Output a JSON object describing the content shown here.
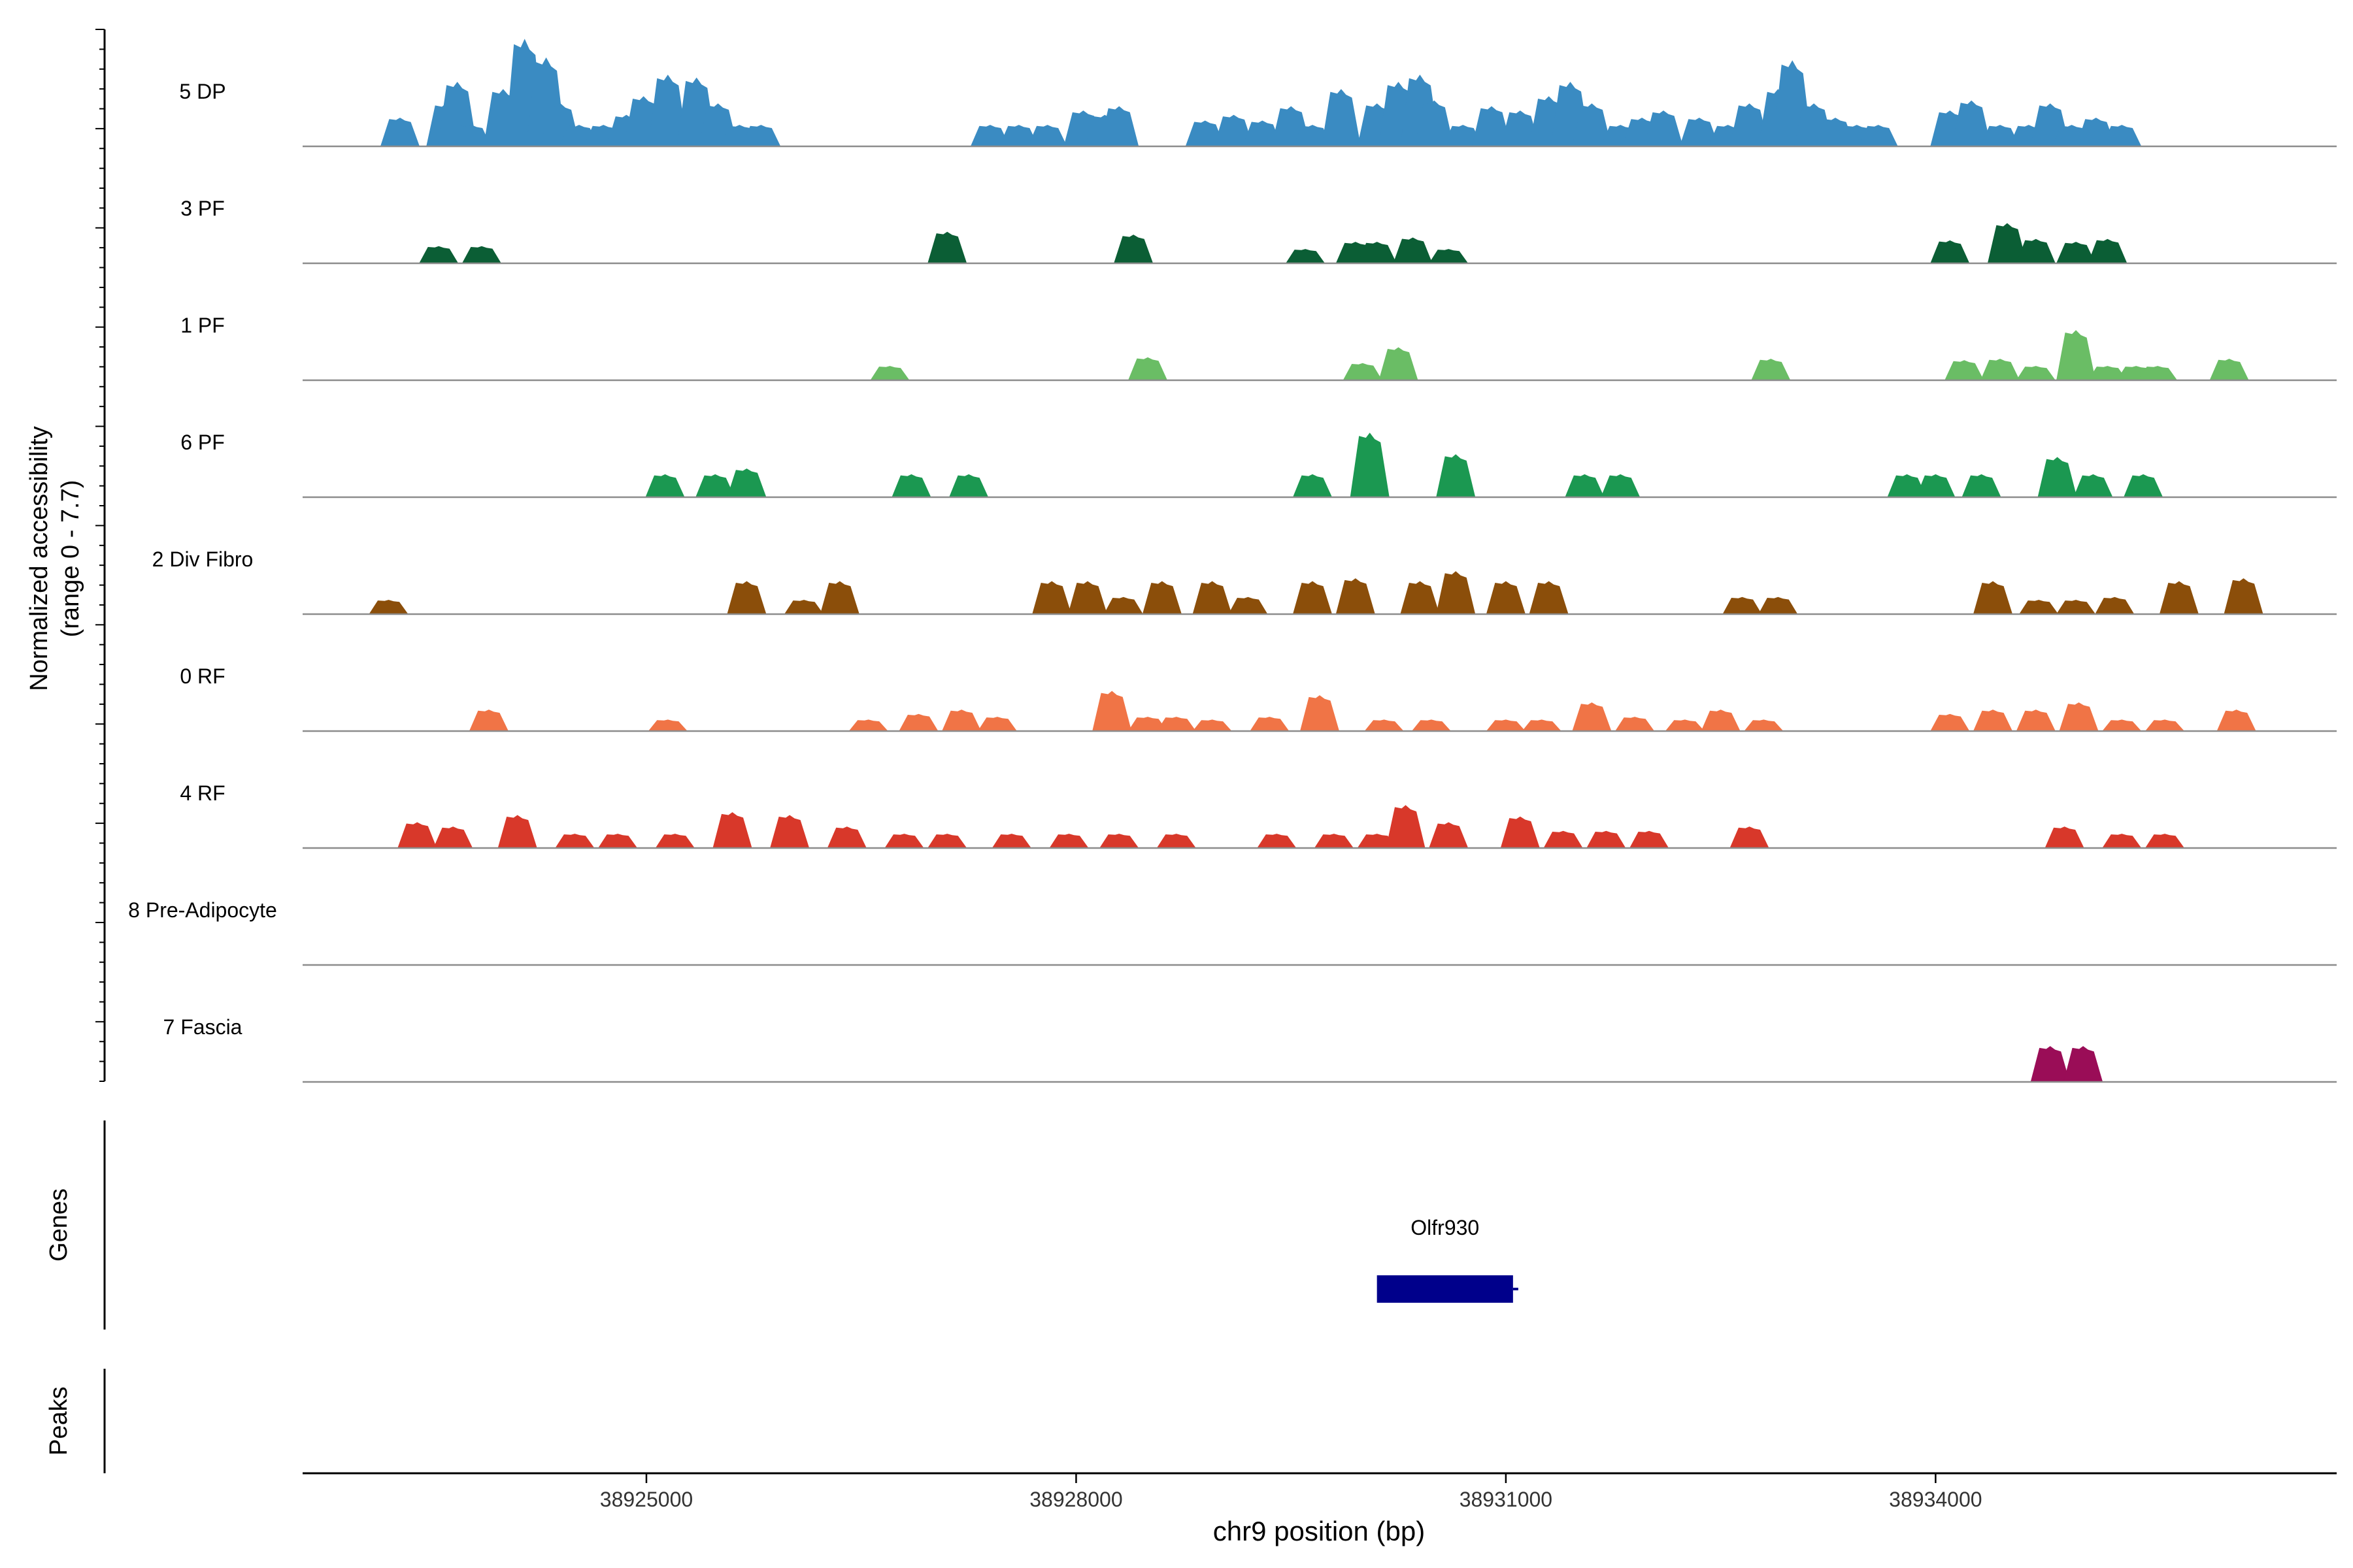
{
  "chart_data": {
    "type": "area",
    "title": "",
    "xlabel": "chr9 position (bp)",
    "ylabel": "Normalized accessibility",
    "ylabel_sub": "(range 0 - 7.7)",
    "ylim": [
      0,
      7.7
    ],
    "xlim": [
      38922600,
      38936800
    ],
    "x_ticks": [
      38925000,
      38928000,
      38931000,
      38934000
    ],
    "x_tick_labels": [
      "38925000",
      "38928000",
      "38931000",
      "38934000"
    ],
    "tracks": [
      {
        "name": "5 DP",
        "color": "#3a8bc2",
        "peaks": [
          [
            38923280,
            2.0
          ],
          [
            38923600,
            3.0
          ],
          [
            38923680,
            4.5
          ],
          [
            38923780,
            1.5
          ],
          [
            38924000,
            4.0
          ],
          [
            38924150,
            7.5
          ],
          [
            38924300,
            6.2
          ],
          [
            38924400,
            3.0
          ],
          [
            38924530,
            1.5
          ],
          [
            38924700,
            1.5
          ],
          [
            38924860,
            2.2
          ],
          [
            38924980,
            3.5
          ],
          [
            38925150,
            5.0
          ],
          [
            38925350,
            4.8
          ],
          [
            38925500,
            3.0
          ],
          [
            38925650,
            1.5
          ],
          [
            38925800,
            1.5
          ],
          [
            38927400,
            1.5
          ],
          [
            38927600,
            1.5
          ],
          [
            38927800,
            1.5
          ],
          [
            38928050,
            2.5
          ],
          [
            38928200,
            2.2
          ],
          [
            38928300,
            2.8
          ],
          [
            38928900,
            1.8
          ],
          [
            38929100,
            2.2
          ],
          [
            38929300,
            1.8
          ],
          [
            38929500,
            2.8
          ],
          [
            38929650,
            1.5
          ],
          [
            38929850,
            4.0
          ],
          [
            38930100,
            3.0
          ],
          [
            38930250,
            4.5
          ],
          [
            38930400,
            5.0
          ],
          [
            38930500,
            3.2
          ],
          [
            38930700,
            1.5
          ],
          [
            38930900,
            2.8
          ],
          [
            38931100,
            2.5
          ],
          [
            38931300,
            3.5
          ],
          [
            38931450,
            4.5
          ],
          [
            38931600,
            3.0
          ],
          [
            38931800,
            1.5
          ],
          [
            38931950,
            2.0
          ],
          [
            38932100,
            2.5
          ],
          [
            38932350,
            2.0
          ],
          [
            38932550,
            1.5
          ],
          [
            38932700,
            3.0
          ],
          [
            38932900,
            4.0
          ],
          [
            38933000,
            6.0
          ],
          [
            38933150,
            3.0
          ],
          [
            38933300,
            2.0
          ],
          [
            38933450,
            1.5
          ],
          [
            38933600,
            1.5
          ],
          [
            38934100,
            2.5
          ],
          [
            38934250,
            3.2
          ],
          [
            38934450,
            1.5
          ],
          [
            38934650,
            1.5
          ],
          [
            38934800,
            3.0
          ],
          [
            38934950,
            1.5
          ],
          [
            38935120,
            2.0
          ],
          [
            38935300,
            1.5
          ]
        ]
      },
      {
        "name": "3 PF",
        "color": "#0b5e35",
        "peaks": [
          [
            38923550,
            1.2
          ],
          [
            38923850,
            1.2
          ],
          [
            38927100,
            2.2
          ],
          [
            38928400,
            2.0
          ],
          [
            38929600,
            1.0
          ],
          [
            38929950,
            1.5
          ],
          [
            38930100,
            1.5
          ],
          [
            38930350,
            1.8
          ],
          [
            38930600,
            1.0
          ],
          [
            38934100,
            1.6
          ],
          [
            38934500,
            2.8
          ],
          [
            38934700,
            1.7
          ],
          [
            38934980,
            1.5
          ],
          [
            38935200,
            1.7
          ]
        ]
      },
      {
        "name": "1 PF",
        "color": "#6abd65",
        "peaks": [
          [
            38926700,
            1.0
          ],
          [
            38928500,
            1.6
          ],
          [
            38930000,
            1.2
          ],
          [
            38930250,
            2.3
          ],
          [
            38932850,
            1.5
          ],
          [
            38934200,
            1.4
          ],
          [
            38934450,
            1.5
          ],
          [
            38934700,
            1.0
          ],
          [
            38934980,
            3.5
          ],
          [
            38935200,
            1.0
          ],
          [
            38935400,
            1.0
          ],
          [
            38935550,
            1.0
          ],
          [
            38936050,
            1.5
          ]
        ]
      },
      {
        "name": "6 PF",
        "color": "#1b9851",
        "peaks": [
          [
            38925130,
            1.6
          ],
          [
            38925480,
            1.6
          ],
          [
            38925700,
            2.0
          ],
          [
            38926850,
            1.6
          ],
          [
            38927250,
            1.6
          ],
          [
            38929650,
            1.6
          ],
          [
            38930050,
            4.5
          ],
          [
            38930650,
            3.0
          ],
          [
            38931550,
            1.6
          ],
          [
            38931800,
            1.6
          ],
          [
            38933800,
            1.6
          ],
          [
            38934000,
            1.6
          ],
          [
            38934320,
            1.6
          ],
          [
            38934850,
            2.8
          ],
          [
            38935100,
            1.6
          ],
          [
            38935450,
            1.6
          ]
        ]
      },
      {
        "name": "2 Div Fibro",
        "color": "#8b4e0a",
        "peaks": [
          [
            38923200,
            1.0
          ],
          [
            38925700,
            2.3
          ],
          [
            38926100,
            1.0
          ],
          [
            38926350,
            2.3
          ],
          [
            38927830,
            2.3
          ],
          [
            38928080,
            2.3
          ],
          [
            38928330,
            1.2
          ],
          [
            38928600,
            2.3
          ],
          [
            38928950,
            2.3
          ],
          [
            38929200,
            1.2
          ],
          [
            38929650,
            2.3
          ],
          [
            38929950,
            2.5
          ],
          [
            38930400,
            2.3
          ],
          [
            38930650,
            3.0
          ],
          [
            38931000,
            2.3
          ],
          [
            38931300,
            2.3
          ],
          [
            38932650,
            1.2
          ],
          [
            38932900,
            1.2
          ],
          [
            38934400,
            2.3
          ],
          [
            38934720,
            1.0
          ],
          [
            38934980,
            1.0
          ],
          [
            38935250,
            1.2
          ],
          [
            38935700,
            2.3
          ],
          [
            38936150,
            2.5
          ]
        ]
      },
      {
        "name": "0 RF",
        "color": "#f07446",
        "peaks": [
          [
            38923900,
            1.5
          ],
          [
            38925150,
            0.8
          ],
          [
            38926550,
            0.8
          ],
          [
            38926900,
            1.2
          ],
          [
            38927200,
            1.5
          ],
          [
            38927450,
            1.0
          ],
          [
            38928250,
            2.8
          ],
          [
            38928500,
            1.0
          ],
          [
            38928700,
            1.0
          ],
          [
            38928950,
            0.8
          ],
          [
            38929350,
            1.0
          ],
          [
            38929700,
            2.5
          ],
          [
            38930150,
            0.8
          ],
          [
            38930480,
            0.8
          ],
          [
            38931000,
            0.8
          ],
          [
            38931250,
            0.8
          ],
          [
            38931600,
            2.0
          ],
          [
            38931900,
            1.0
          ],
          [
            38932250,
            0.8
          ],
          [
            38932500,
            1.5
          ],
          [
            38932800,
            0.8
          ],
          [
            38934100,
            1.2
          ],
          [
            38934400,
            1.5
          ],
          [
            38934700,
            1.5
          ],
          [
            38935000,
            2.0
          ],
          [
            38935300,
            0.8
          ],
          [
            38935600,
            0.8
          ],
          [
            38936100,
            1.5
          ]
        ]
      },
      {
        "name": "4 RF",
        "color": "#d8382a",
        "peaks": [
          [
            38923400,
            1.8
          ],
          [
            38923650,
            1.5
          ],
          [
            38924100,
            2.3
          ],
          [
            38924500,
            1.0
          ],
          [
            38924800,
            1.0
          ],
          [
            38925200,
            1.0
          ],
          [
            38925600,
            2.5
          ],
          [
            38926000,
            2.3
          ],
          [
            38926400,
            1.5
          ],
          [
            38926800,
            1.0
          ],
          [
            38927100,
            1.0
          ],
          [
            38927550,
            1.0
          ],
          [
            38927950,
            1.0
          ],
          [
            38928300,
            1.0
          ],
          [
            38928700,
            1.0
          ],
          [
            38929400,
            1.0
          ],
          [
            38929800,
            1.0
          ],
          [
            38930100,
            1.0
          ],
          [
            38930300,
            3.0
          ],
          [
            38930600,
            1.8
          ],
          [
            38931100,
            2.2
          ],
          [
            38931400,
            1.2
          ],
          [
            38931700,
            1.2
          ],
          [
            38932000,
            1.2
          ],
          [
            38932700,
            1.5
          ],
          [
            38934900,
            1.5
          ],
          [
            38935300,
            1.0
          ],
          [
            38935600,
            1.0
          ]
        ]
      },
      {
        "name": "8 Pre-Adipocyte",
        "color": "#a15a9b",
        "peaks": []
      },
      {
        "name": "7 Fascia",
        "color": "#9a0d57",
        "peaks": [
          [
            38934800,
            2.5
          ],
          [
            38935030,
            2.5
          ]
        ]
      }
    ],
    "genes": {
      "label": "Genes",
      "items": [
        {
          "name": "Olfr930",
          "start": 38930100,
          "end": 38931050,
          "color": "#00008b"
        }
      ]
    },
    "peaks_track": {
      "label": "Peaks",
      "items": []
    }
  }
}
